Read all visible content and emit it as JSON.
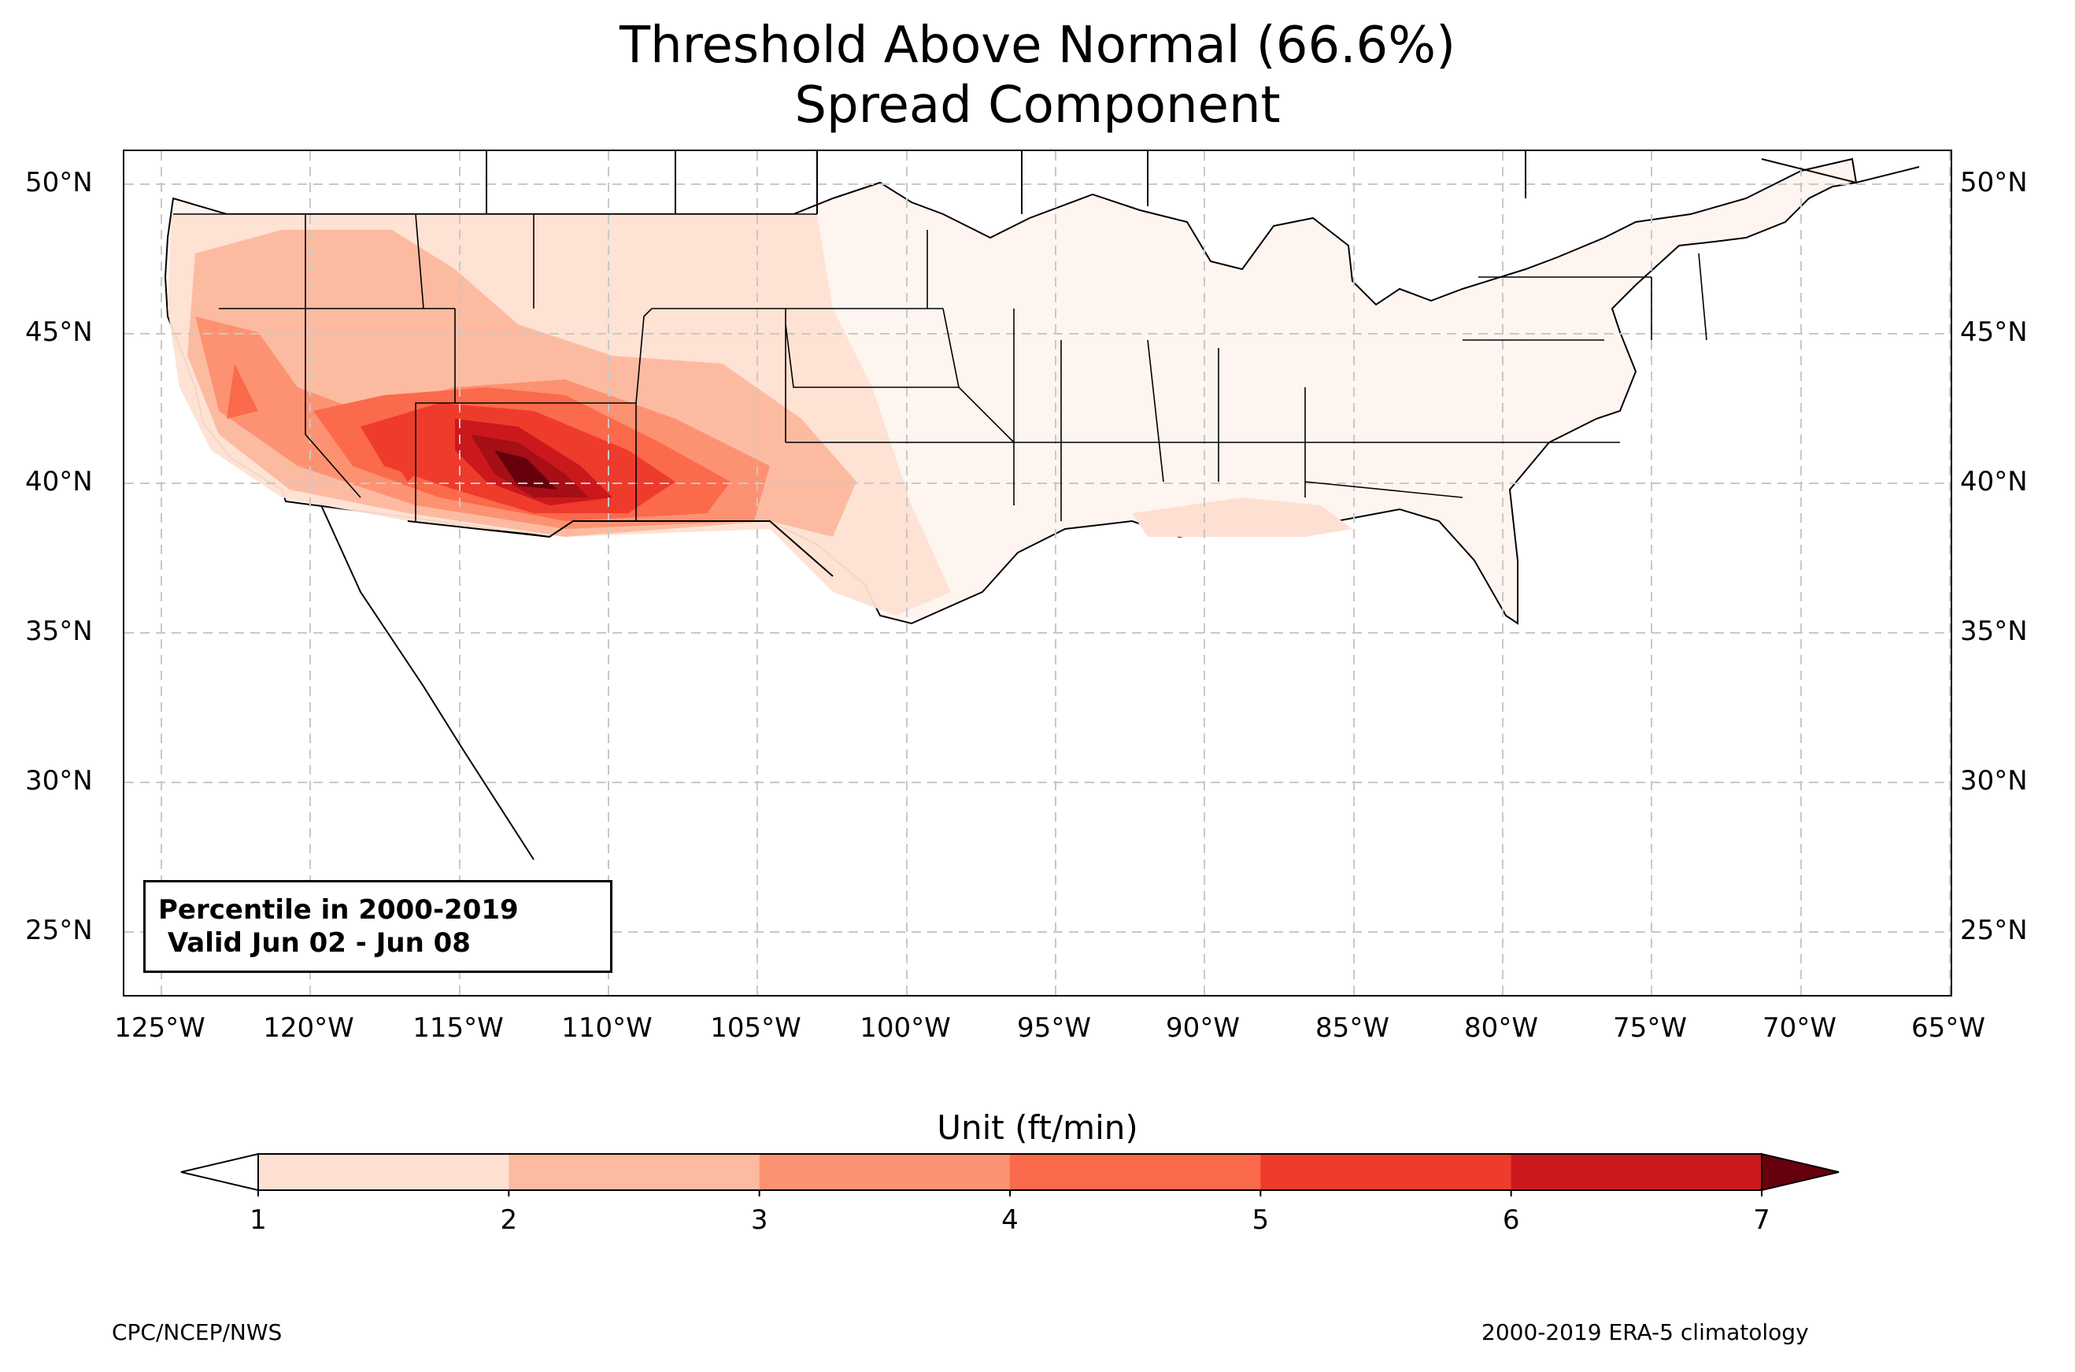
{
  "title": {
    "line1": "Threshold Above Normal (66.6%)",
    "line2": "Spread Component"
  },
  "map": {
    "lat_labels": [
      "50°N",
      "45°N",
      "40°N",
      "35°N",
      "30°N",
      "25°N"
    ],
    "lon_labels": [
      "125°W",
      "120°W",
      "115°W",
      "110°W",
      "105°W",
      "100°W",
      "95°W",
      "90°W",
      "85°W",
      "80°W",
      "75°W",
      "70°W",
      "65°W"
    ],
    "info_box": {
      "line1": "Percentile in 2000-2019",
      "line2": " Valid Jun 02 - Jun 08"
    }
  },
  "colorbar": {
    "title": "Unit (ft/min)",
    "tick_labels": [
      "1",
      "2",
      "3",
      "4",
      "5",
      "6",
      "7"
    ],
    "colors": [
      "#fee0d2",
      "#fcbba1",
      "#fc9272",
      "#fb6a4a",
      "#ef3b2c",
      "#cb181d",
      "#a50f15",
      "#67000d"
    ],
    "under_color": "#ffffff"
  },
  "footer": {
    "left": "CPC/NCEP/NWS",
    "right": "2000-2019 ERA-5 climatology"
  }
}
